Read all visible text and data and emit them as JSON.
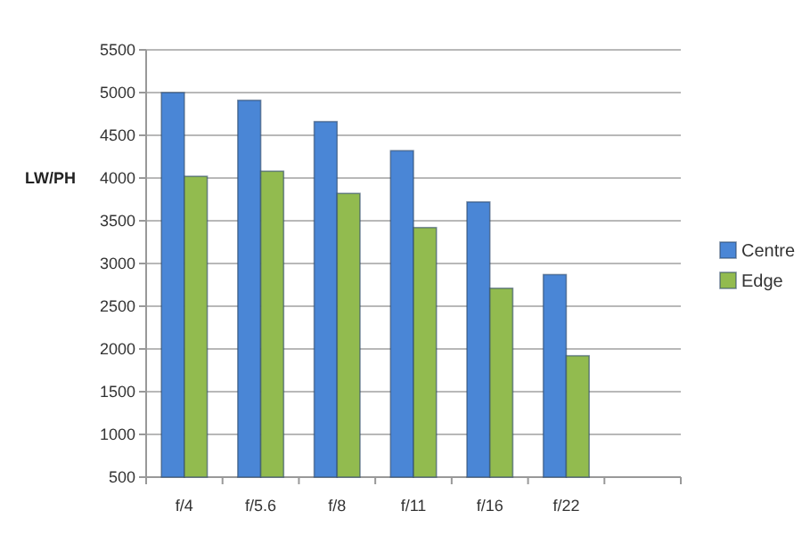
{
  "chart_data": {
    "type": "bar",
    "ylabel": "LW/PH",
    "categories": [
      "f/4",
      "f/5.6",
      "f/8",
      "f/11",
      "f/16",
      "f/22",
      null
    ],
    "series": [
      {
        "name": "Centre",
        "color": "#4a86d6",
        "values": [
          5000,
          4910,
          4660,
          4320,
          3720,
          2870,
          null
        ]
      },
      {
        "name": "Edge",
        "color": "#92bb4f",
        "values": [
          4020,
          4080,
          3820,
          3420,
          2710,
          1920,
          null
        ]
      }
    ],
    "ylim": [
      500,
      5500
    ],
    "yticks": [
      500,
      1000,
      1500,
      2000,
      2500,
      3000,
      3500,
      4000,
      4500,
      5000,
      5500
    ],
    "grid": "y",
    "legend": "right"
  }
}
